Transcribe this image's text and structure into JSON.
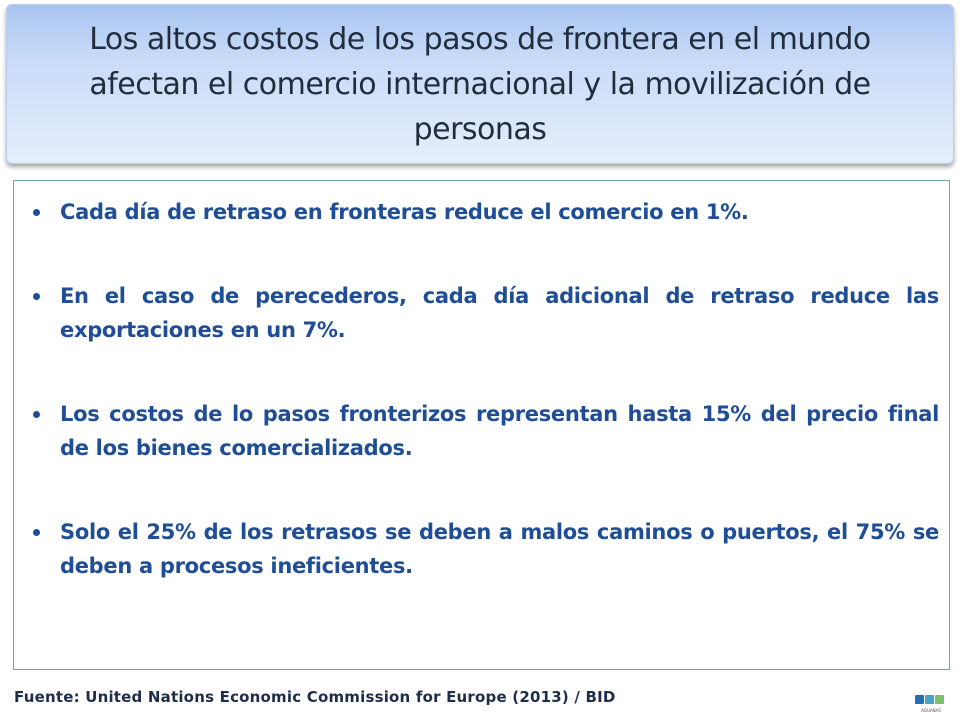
{
  "title": "Los altos costos de los pasos de frontera en el mundo afectan el comercio internacional y la movilización de personas",
  "bullets": [
    "Cada día de retraso en fronteras reduce el comercio en 1%.",
    "En el caso de perecederos, cada día adicional de retraso reduce las exportaciones en un 7%.",
    "Los costos de lo pasos fronterizos representan hasta 15% del precio  final de los bienes comercializados.",
    "Solo el 25% de los retrasos se deben a malos caminos o puertos, el 75% se deben a procesos ineficientes."
  ],
  "source": "Fuente: United Nations Economic Commission for Europe (2013) / BID",
  "logo": {
    "text": "DGA",
    "subtext": "ADUANAS",
    "icon": "dga-logo-icon"
  },
  "colors": {
    "title_text": "#1f2d3d",
    "bullet_text": "#1f4e96",
    "content_border": "#6fa7a7",
    "title_bg_top": "#a9c6f2",
    "title_bg_bottom": "#e6eefb"
  }
}
